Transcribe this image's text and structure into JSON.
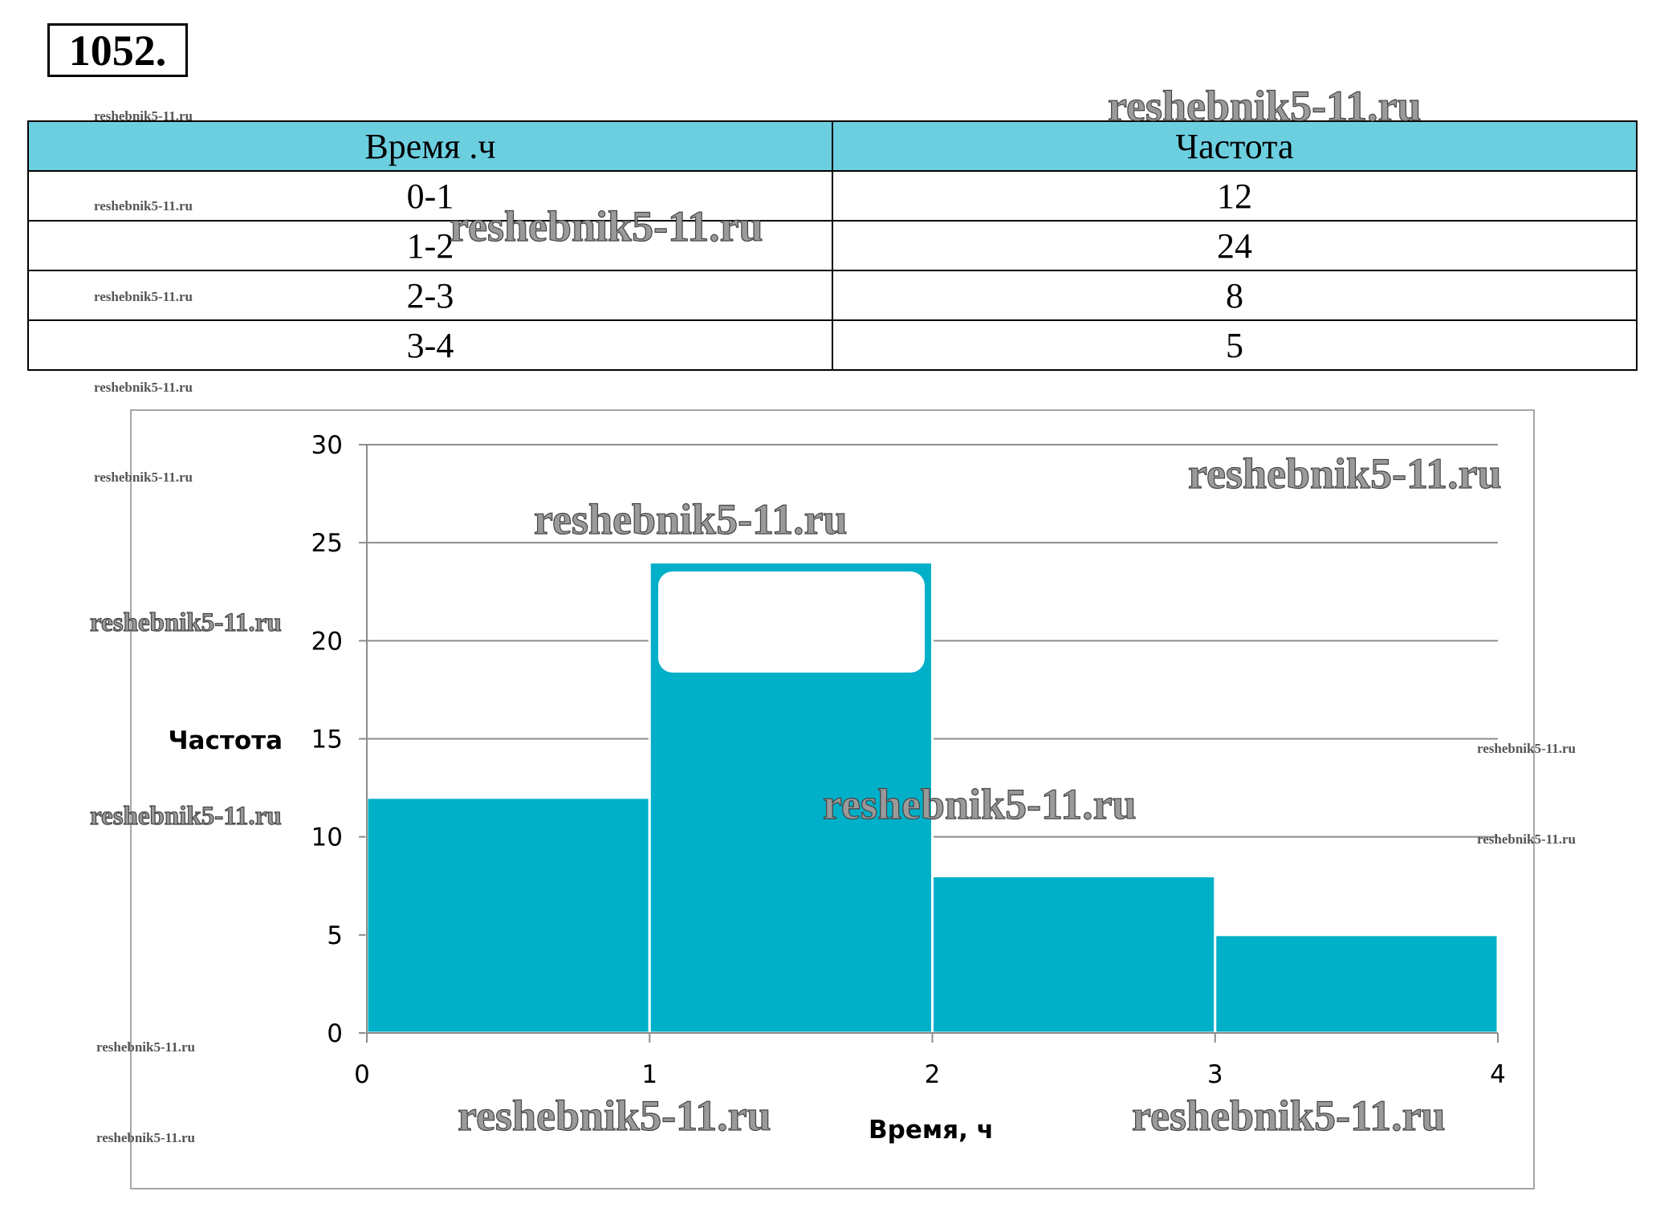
{
  "problem_number": "1052.",
  "table": {
    "headers": [
      "Время .ч",
      "Частота"
    ],
    "rows": [
      [
        "0-1",
        "12"
      ],
      [
        "1-2",
        "24"
      ],
      [
        "2-3",
        "8"
      ],
      [
        "3-4",
        "5"
      ]
    ]
  },
  "chart_data": {
    "type": "bar",
    "categories": [
      "0-1",
      "1-2",
      "2-3",
      "3-4"
    ],
    "bins": [
      [
        0,
        1
      ],
      [
        1,
        2
      ],
      [
        2,
        3
      ],
      [
        3,
        4
      ]
    ],
    "values": [
      12,
      24,
      8,
      5
    ],
    "xlabel": "Время, ч",
    "ylabel": "Частота",
    "xlim": [
      0,
      4
    ],
    "ylim": [
      0,
      30
    ],
    "x_ticks": [
      "0",
      "1",
      "2",
      "3",
      "4"
    ],
    "y_ticks": [
      "0",
      "5",
      "10",
      "15",
      "20",
      "25",
      "30"
    ],
    "grid": true,
    "bar_color": "#00b0c8"
  },
  "watermark": "reshebnik5-11.ru"
}
